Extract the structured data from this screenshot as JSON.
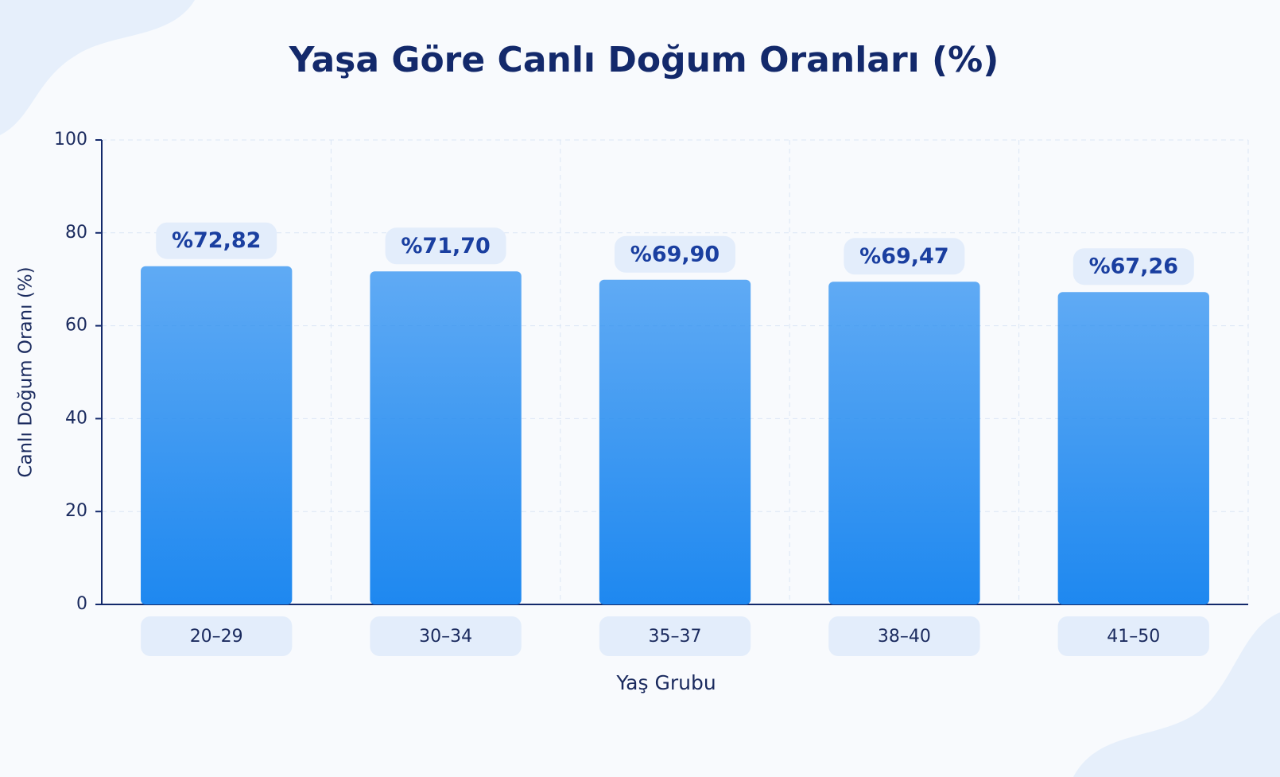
{
  "chart_data": {
    "type": "bar",
    "title": "Yaşa Göre Canlı Doğum Oranları (%)",
    "x_label": "Yaş Grubu",
    "y_label": "Canlı Doğum Oranı (%)",
    "categories": [
      "20–29",
      "30–34",
      "35–37",
      "38–40",
      "41–50"
    ],
    "values": [
      72.82,
      71.7,
      69.9,
      69.47,
      67.26
    ],
    "value_labels": [
      "%72,82",
      "%71,70",
      "%69,90",
      "%69,47",
      "%67,26"
    ],
    "color": "#1e88f0",
    "ylim": [
      0,
      100
    ],
    "yticks": [
      0,
      20,
      40,
      60,
      80,
      100
    ],
    "grid": true
  }
}
